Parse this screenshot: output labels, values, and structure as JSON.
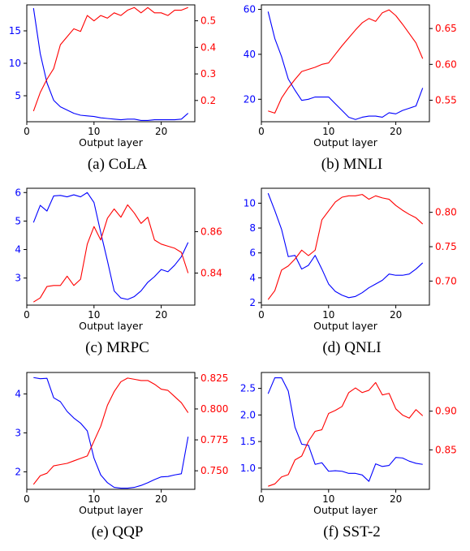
{
  "chart_data": [
    {
      "type": "line",
      "caption": "(a) CoLA",
      "xlabel": "Output layer",
      "x": [
        1,
        2,
        3,
        4,
        5,
        6,
        7,
        8,
        9,
        10,
        11,
        12,
        13,
        14,
        15,
        16,
        17,
        18,
        19,
        20,
        21,
        22,
        23,
        24
      ],
      "xlim": [
        0,
        25
      ],
      "xticks": [
        0,
        10,
        20
      ],
      "left_axis": {
        "color": "#0000ff",
        "ylim": [
          1.0,
          19.0
        ],
        "ticks": [
          5,
          10,
          15
        ]
      },
      "right_axis": {
        "color": "#ff0000",
        "ylim": [
          0.12,
          0.56
        ],
        "ticks": [
          0.2,
          0.3,
          0.4,
          0.5
        ]
      },
      "series": [
        {
          "axis": "left",
          "color": "#0000ff",
          "values": [
            18.5,
            11.5,
            7.0,
            4.3,
            3.3,
            2.8,
            2.3,
            2.0,
            1.9,
            1.8,
            1.6,
            1.5,
            1.4,
            1.3,
            1.4,
            1.4,
            1.2,
            1.2,
            1.3,
            1.3,
            1.3,
            1.3,
            1.4,
            2.3
          ]
        },
        {
          "axis": "right",
          "color": "#ff0000",
          "values": [
            0.16,
            0.23,
            0.28,
            0.32,
            0.41,
            0.44,
            0.47,
            0.46,
            0.52,
            0.5,
            0.52,
            0.51,
            0.53,
            0.52,
            0.54,
            0.55,
            0.53,
            0.55,
            0.53,
            0.53,
            0.52,
            0.54,
            0.54,
            0.55
          ]
        }
      ]
    },
    {
      "type": "line",
      "caption": "(b) MNLI",
      "xlabel": "Output layer",
      "x": [
        1,
        2,
        3,
        4,
        5,
        6,
        7,
        8,
        9,
        10,
        11,
        12,
        13,
        14,
        15,
        16,
        17,
        18,
        19,
        20,
        21,
        22,
        23,
        24
      ],
      "xlim": [
        0,
        25
      ],
      "xticks": [
        0,
        10,
        20
      ],
      "left_axis": {
        "color": "#0000ff",
        "ylim": [
          10,
          62
        ],
        "ticks": [
          20,
          40,
          60
        ]
      },
      "right_axis": {
        "color": "#ff0000",
        "ylim": [
          0.52,
          0.683
        ],
        "ticks": [
          0.55,
          0.6,
          0.65
        ]
      },
      "series": [
        {
          "axis": "left",
          "color": "#0000ff",
          "values": [
            59,
            47,
            39,
            29,
            24,
            19.5,
            20,
            21,
            21,
            21,
            18,
            15,
            12,
            11,
            12,
            12.5,
            12.5,
            12,
            14,
            13.5,
            15,
            16,
            17,
            25
          ]
        },
        {
          "axis": "right",
          "color": "#ff0000",
          "values": [
            0.535,
            0.532,
            0.553,
            0.567,
            0.579,
            0.59,
            0.593,
            0.596,
            0.6,
            0.602,
            0.614,
            0.626,
            0.637,
            0.648,
            0.658,
            0.664,
            0.66,
            0.672,
            0.676,
            0.668,
            0.656,
            0.643,
            0.63,
            0.608
          ]
        }
      ]
    },
    {
      "type": "line",
      "caption": "(c) MRPC",
      "xlabel": "Output layer",
      "x": [
        1,
        2,
        3,
        4,
        5,
        6,
        7,
        8,
        9,
        10,
        11,
        12,
        13,
        14,
        15,
        16,
        17,
        18,
        19,
        20,
        21,
        22,
        23,
        24
      ],
      "xlim": [
        0,
        25
      ],
      "xticks": [
        0,
        10,
        20
      ],
      "left_axis": {
        "color": "#0000ff",
        "ylim": [
          2.05,
          6.15
        ],
        "ticks": [
          3,
          4,
          5,
          6
        ]
      },
      "right_axis": {
        "color": "#ff0000",
        "ylim": [
          0.8245,
          0.881
        ],
        "ticks": [
          0.84,
          0.86
        ]
      },
      "series": [
        {
          "axis": "left",
          "color": "#0000ff",
          "values": [
            4.95,
            5.55,
            5.35,
            5.88,
            5.9,
            5.85,
            5.92,
            5.85,
            6.0,
            5.65,
            4.6,
            3.6,
            2.55,
            2.3,
            2.25,
            2.35,
            2.55,
            2.85,
            3.05,
            3.3,
            3.22,
            3.45,
            3.75,
            4.25
          ]
        },
        {
          "axis": "right",
          "color": "#ff0000",
          "values": [
            0.826,
            0.828,
            0.8335,
            0.834,
            0.834,
            0.8385,
            0.834,
            0.837,
            0.854,
            0.8625,
            0.856,
            0.8665,
            0.871,
            0.867,
            0.873,
            0.869,
            0.864,
            0.867,
            0.856,
            0.854,
            0.853,
            0.852,
            0.85,
            0.84
          ]
        }
      ]
    },
    {
      "type": "line",
      "caption": "(d) QNLI",
      "xlabel": "Output layer",
      "x": [
        1,
        2,
        3,
        4,
        5,
        6,
        7,
        8,
        9,
        10,
        11,
        12,
        13,
        14,
        15,
        16,
        17,
        18,
        19,
        20,
        21,
        22,
        23,
        24
      ],
      "xlim": [
        0,
        25
      ],
      "xticks": [
        0,
        10,
        20
      ],
      "left_axis": {
        "color": "#0000ff",
        "ylim": [
          1.8,
          11.2
        ],
        "ticks": [
          2,
          4,
          6,
          8,
          10
        ]
      },
      "right_axis": {
        "color": "#ff0000",
        "ylim": [
          0.665,
          0.835
        ],
        "ticks": [
          0.7,
          0.75,
          0.8
        ]
      },
      "series": [
        {
          "axis": "left",
          "color": "#0000ff",
          "values": [
            10.8,
            9.4,
            7.9,
            5.7,
            5.8,
            4.7,
            5.0,
            5.8,
            4.7,
            3.5,
            2.9,
            2.6,
            2.4,
            2.5,
            2.8,
            3.2,
            3.5,
            3.8,
            4.3,
            4.2,
            4.2,
            4.3,
            4.7,
            5.2
          ]
        },
        {
          "axis": "right",
          "color": "#ff0000",
          "values": [
            0.673,
            0.686,
            0.716,
            0.722,
            0.732,
            0.745,
            0.737,
            0.745,
            0.789,
            0.802,
            0.815,
            0.822,
            0.824,
            0.824,
            0.826,
            0.819,
            0.824,
            0.821,
            0.819,
            0.81,
            0.803,
            0.797,
            0.792,
            0.783
          ]
        }
      ]
    },
    {
      "type": "line",
      "caption": "(e) QQP",
      "xlabel": "Output layer",
      "x": [
        1,
        2,
        3,
        4,
        5,
        6,
        7,
        8,
        9,
        10,
        11,
        12,
        13,
        14,
        15,
        16,
        17,
        18,
        19,
        20,
        21,
        22,
        23,
        24
      ],
      "xlim": [
        0,
        25
      ],
      "xticks": [
        0,
        10,
        20
      ],
      "left_axis": {
        "color": "#0000ff",
        "ylim": [
          1.55,
          4.55
        ],
        "ticks": [
          2,
          3,
          4
        ]
      },
      "right_axis": {
        "color": "#ff0000",
        "ylim": [
          0.735,
          0.8295
        ],
        "ticks": [
          0.75,
          0.775,
          0.8,
          0.825
        ]
      },
      "series": [
        {
          "axis": "left",
          "color": "#0000ff",
          "values": [
            4.42,
            4.39,
            4.4,
            3.9,
            3.8,
            3.55,
            3.38,
            3.25,
            3.05,
            2.35,
            1.92,
            1.72,
            1.6,
            1.58,
            1.58,
            1.6,
            1.65,
            1.72,
            1.8,
            1.87,
            1.88,
            1.92,
            1.95,
            2.9
          ]
        },
        {
          "axis": "right",
          "color": "#ff0000",
          "values": [
            0.739,
            0.746,
            0.748,
            0.754,
            0.755,
            0.756,
            0.758,
            0.76,
            0.762,
            0.774,
            0.786,
            0.803,
            0.814,
            0.822,
            0.825,
            0.824,
            0.823,
            0.823,
            0.82,
            0.816,
            0.815,
            0.81,
            0.805,
            0.797
          ]
        }
      ]
    },
    {
      "type": "line",
      "caption": "(f) SST-2",
      "xlabel": "Output layer",
      "x": [
        1,
        2,
        3,
        4,
        5,
        6,
        7,
        8,
        9,
        10,
        11,
        12,
        13,
        14,
        15,
        16,
        17,
        18,
        19,
        20,
        21,
        22,
        23,
        24
      ],
      "xlim": [
        0,
        25
      ],
      "xticks": [
        0,
        10,
        20
      ],
      "left_axis": {
        "color": "#0000ff",
        "ylim": [
          0.6,
          2.8
        ],
        "ticks": [
          1.0,
          1.5,
          2.0,
          2.5
        ]
      },
      "right_axis": {
        "color": "#ff0000",
        "ylim": [
          0.799,
          0.95
        ],
        "ticks": [
          0.85,
          0.9
        ]
      },
      "series": [
        {
          "axis": "left",
          "color": "#0000ff",
          "values": [
            2.4,
            2.7,
            2.7,
            2.45,
            1.77,
            1.45,
            1.43,
            1.07,
            1.1,
            0.94,
            0.95,
            0.94,
            0.9,
            0.9,
            0.87,
            0.75,
            1.08,
            1.03,
            1.05,
            1.2,
            1.19,
            1.13,
            1.09,
            1.07
          ]
        },
        {
          "axis": "right",
          "color": "#ff0000",
          "values": [
            0.803,
            0.806,
            0.815,
            0.818,
            0.837,
            0.842,
            0.861,
            0.874,
            0.876,
            0.897,
            0.901,
            0.906,
            0.924,
            0.93,
            0.924,
            0.927,
            0.937,
            0.921,
            0.923,
            0.903,
            0.895,
            0.891,
            0.902,
            0.894
          ]
        }
      ]
    }
  ]
}
